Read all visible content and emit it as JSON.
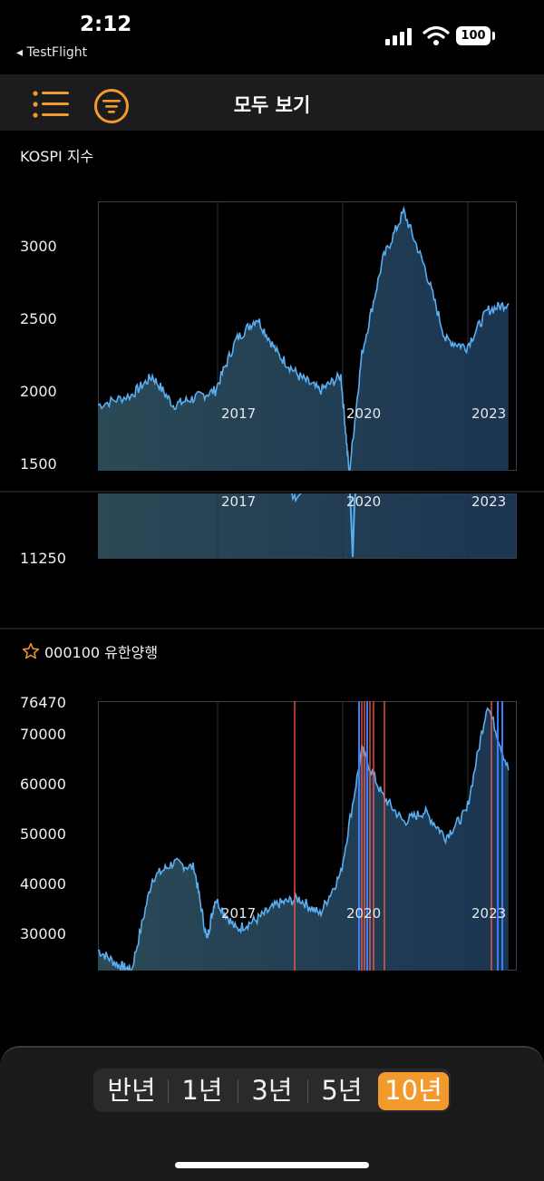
{
  "status": {
    "time": "2:12",
    "back_app": "◂ TestFlight",
    "battery": "100"
  },
  "nav": {
    "title": "모두 보기"
  },
  "panels": [
    {
      "title": "KOSPI 지수",
      "y_ticks": [
        "3000",
        "2500",
        "2000",
        "1500"
      ],
      "x_ticks": [
        "2017",
        "2020",
        "2023"
      ]
    },
    {
      "partial_tick": "11250",
      "x_ticks": [
        "2017",
        "2020",
        "2023"
      ]
    },
    {
      "title": "000100 유한양행",
      "y_ticks": [
        "76470",
        "70000",
        "60000",
        "50000",
        "40000",
        "30000"
      ],
      "x_ticks": [
        "2017",
        "2020",
        "2023"
      ]
    }
  ],
  "periods": {
    "options": [
      "반년",
      "1년",
      "3년",
      "5년",
      "10년"
    ],
    "selected": "10년"
  },
  "colors": {
    "accent": "#f29a2e",
    "line": "#5aaef0",
    "marker": "#ff5a4a",
    "marker_blue": "#3a7ff5"
  },
  "chart_data": [
    {
      "type": "area",
      "title": "KOSPI 지수",
      "x": [
        2014.2,
        2015,
        2015.5,
        2016,
        2016.5,
        2017,
        2017.5,
        2018,
        2018.5,
        2019,
        2019.5,
        2020,
        2020.2,
        2020.5,
        2021,
        2021.5,
        2022,
        2022.5,
        2023,
        2023.5,
        2024
      ],
      "values": [
        1950,
        2020,
        2150,
        1950,
        2000,
        2050,
        2400,
        2550,
        2300,
        2150,
        2050,
        2150,
        1480,
        2300,
        2950,
        3280,
        2900,
        2400,
        2350,
        2600,
        2650
      ],
      "ylim": [
        1500,
        3350
      ]
    },
    {
      "type": "area",
      "title": "000100 유한양행",
      "x": [
        2014.2,
        2014.7,
        2015,
        2015.5,
        2016,
        2016.5,
        2016.8,
        2017,
        2017.5,
        2018,
        2018.5,
        2019,
        2019.5,
        2020,
        2020.5,
        2021,
        2021.5,
        2022,
        2022.5,
        2023,
        2023.5,
        2024
      ],
      "values": [
        28000,
        25000,
        24000,
        42000,
        45000,
        44000,
        30000,
        38000,
        32000,
        34000,
        37000,
        38000,
        35000,
        43000,
        67000,
        58000,
        53000,
        55000,
        50000,
        55000,
        76000,
        63000
      ],
      "ylim": [
        24000,
        76470
      ]
    }
  ]
}
